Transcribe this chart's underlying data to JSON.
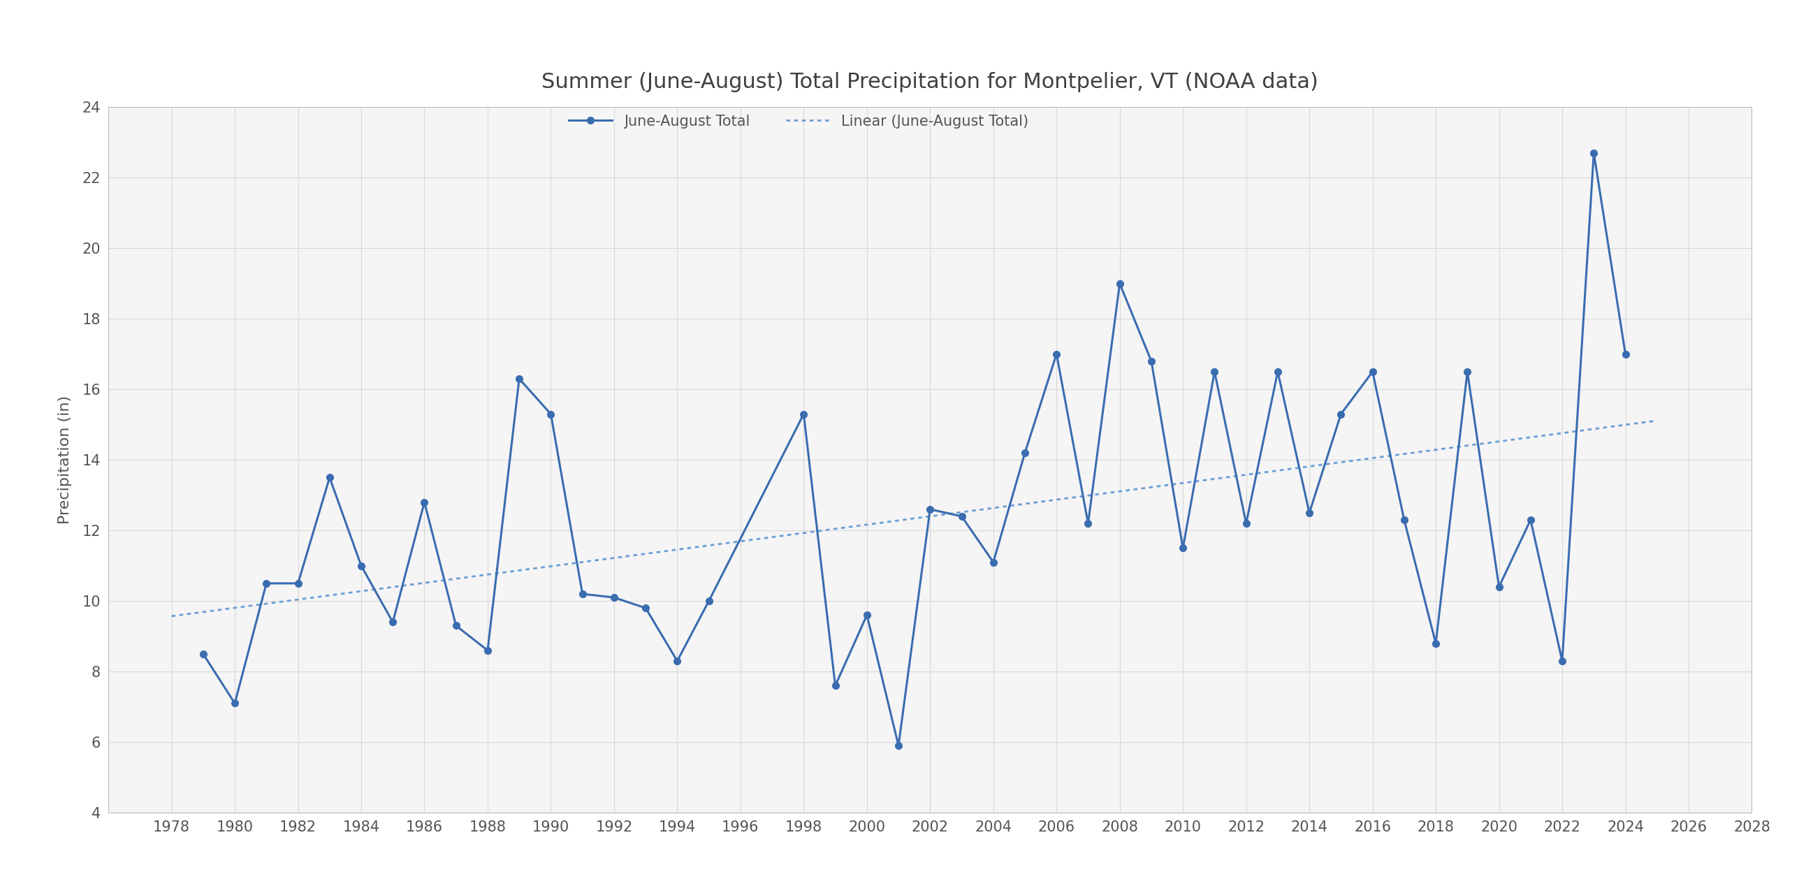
{
  "title": "Summer (June-August) Total Precipitation for Montpelier, VT (NOAA data)",
  "ylabel": "Precipitation (in)",
  "line_label": "June-August Total",
  "trend_label": "Linear (June-August Total)",
  "line_color": "#3A6CB0",
  "trend_color": "#6A9DD4",
  "years": [
    1979,
    1980,
    1981,
    1982,
    1983,
    1984,
    1985,
    1986,
    1987,
    1988,
    1989,
    1990,
    1991,
    1992,
    1993,
    1994,
    1995,
    1998,
    1999,
    2000,
    2001,
    2002,
    2003,
    2004,
    2005,
    2006,
    2007,
    2008,
    2009,
    2010,
    2011,
    2012,
    2013,
    2014,
    2015,
    2016,
    2017,
    2018,
    2019,
    2020,
    2021,
    2022,
    2023,
    2024
  ],
  "values": [
    8.5,
    7.1,
    10.5,
    10.5,
    13.5,
    11.0,
    9.4,
    12.8,
    9.3,
    8.6,
    16.3,
    15.3,
    10.2,
    10.1,
    9.8,
    8.3,
    10.0,
    15.3,
    7.6,
    9.6,
    5.9,
    12.6,
    12.4,
    11.1,
    14.2,
    17.0,
    12.2,
    19.0,
    16.8,
    11.5,
    16.5,
    12.2,
    16.5,
    12.5,
    15.3,
    16.5,
    12.3,
    8.8,
    16.5,
    10.4,
    12.3,
    8.3,
    22.7,
    17.0
  ],
  "xlim": [
    1976,
    2028
  ],
  "ylim": [
    4,
    24
  ],
  "xticks": [
    1978,
    1980,
    1982,
    1984,
    1986,
    1988,
    1990,
    1992,
    1994,
    1996,
    1998,
    2000,
    2002,
    2004,
    2006,
    2008,
    2010,
    2012,
    2014,
    2016,
    2018,
    2020,
    2022,
    2024,
    2026,
    2028
  ],
  "yticks": [
    4,
    6,
    8,
    10,
    12,
    14,
    16,
    18,
    20,
    22,
    24
  ],
  "bg_color": "#FFFFFF",
  "plot_bg_color": "#F5F5F5",
  "grid_color": "#D8D8D8",
  "title_fontsize": 22,
  "label_fontsize": 16,
  "tick_fontsize": 15,
  "legend_fontsize": 15
}
